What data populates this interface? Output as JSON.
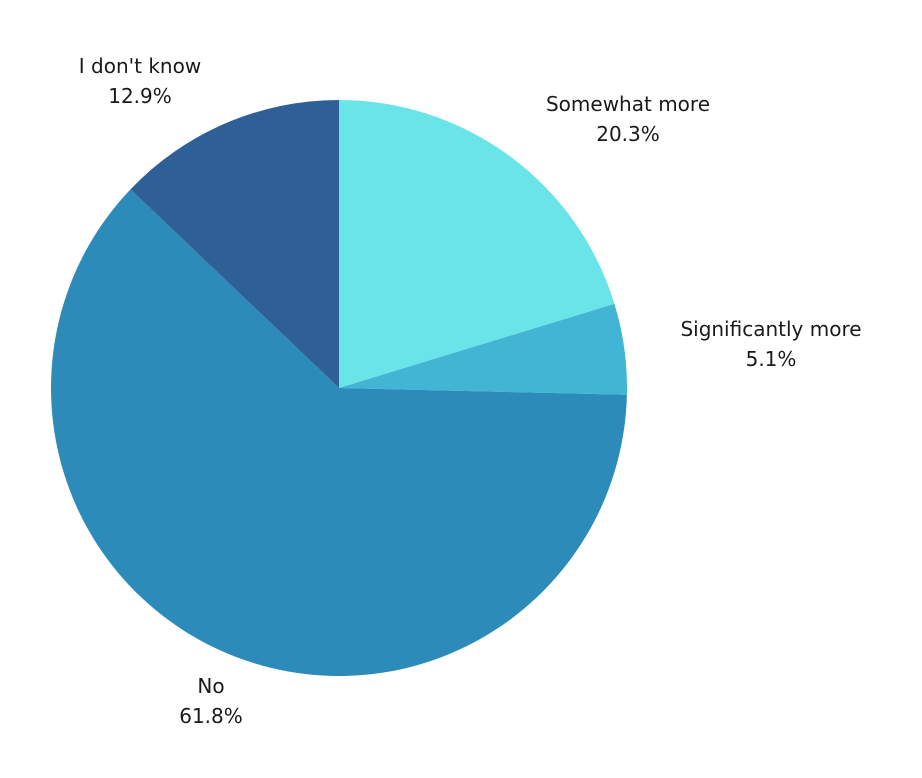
{
  "chart_data": {
    "type": "pie",
    "start_angle_deg": 0,
    "direction": "clockwise",
    "legend": "none",
    "slices": [
      {
        "label": "Somewhat more",
        "value": 20.3,
        "value_label": "20.3%",
        "color": "#69e5ea"
      },
      {
        "label": "Significantly more",
        "value": 5.1,
        "value_label": "5.1%",
        "color": "#42b5d5"
      },
      {
        "label": "No",
        "value": 61.8,
        "value_label": "61.8%",
        "color": "#2d8bb9"
      },
      {
        "label": "I don't know",
        "value": 12.9,
        "value_label": "12.9%",
        "color": "#2e5f96"
      }
    ]
  }
}
